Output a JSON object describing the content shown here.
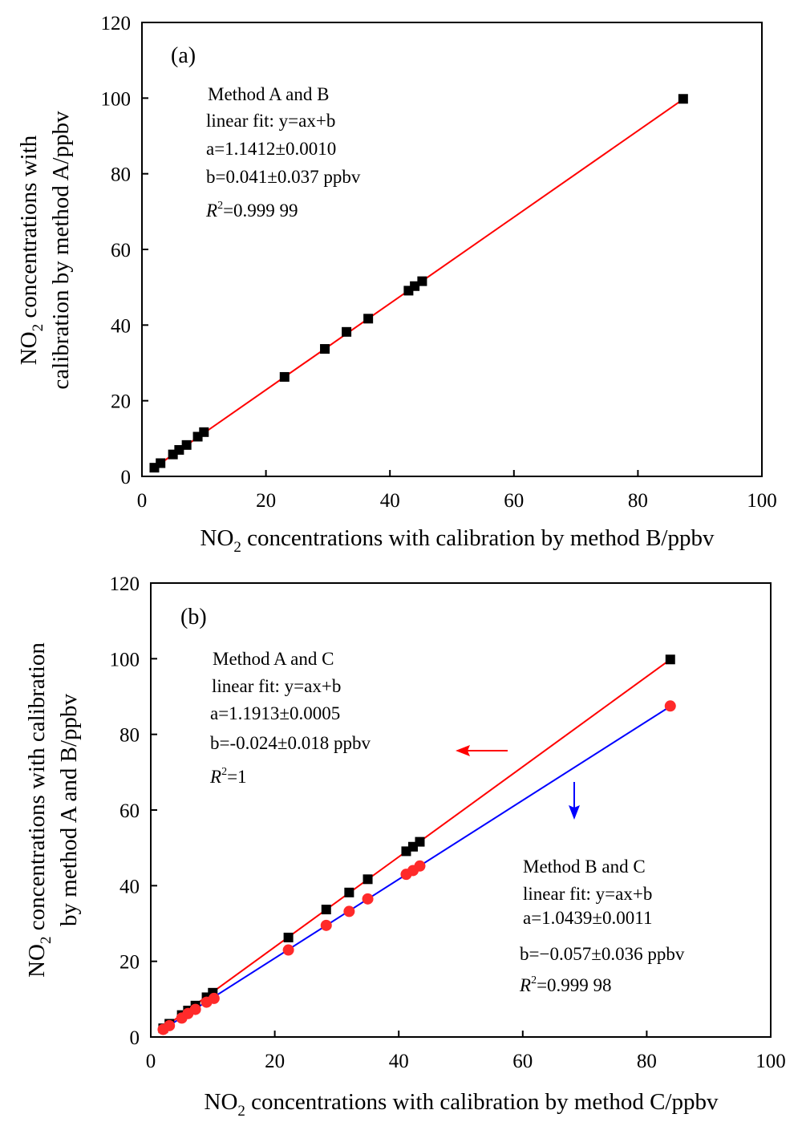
{
  "chart_data": [
    {
      "type": "scatter",
      "panel_label": "(a)",
      "xlabel": {
        "prefix": "NO",
        "sub": "2",
        "rest": " concentrations with calibration by method B/ppbv"
      },
      "ylabel": {
        "line1_prefix": "NO",
        "line1_sub": "2",
        "line1_rest": " concentrations with",
        "line2": "calibration by method A/ppbv"
      },
      "xlim": [
        0,
        100
      ],
      "ylim": [
        0,
        120
      ],
      "xticks": [
        "0",
        "20",
        "40",
        "60",
        "80",
        "100"
      ],
      "yticks": [
        "0",
        "20",
        "40",
        "60",
        "80",
        "100",
        "120"
      ],
      "grid": false,
      "annotation": {
        "title": "Method A and B",
        "fit": "linear fit: y=ax+b",
        "a": "a=1.1412±0.0010",
        "b": "b=0.041±0.037 ppbv",
        "r2_symbol": "R",
        "r2_value": "=0.999 99"
      },
      "series": [
        {
          "marker": "square",
          "color": "#000000",
          "points": [
            [
              2.0,
              2.3
            ],
            [
              3.0,
              3.5
            ],
            [
              5.0,
              5.8
            ],
            [
              6.0,
              7.0
            ],
            [
              7.2,
              8.3
            ],
            [
              9.0,
              10.5
            ],
            [
              10.0,
              11.7
            ],
            [
              23.0,
              26.3
            ],
            [
              29.5,
              33.7
            ],
            [
              33.0,
              38.2
            ],
            [
              36.5,
              41.7
            ],
            [
              43.0,
              49.1
            ],
            [
              44.0,
              50.3
            ],
            [
              45.2,
              51.6
            ],
            [
              87.3,
              99.8
            ]
          ]
        }
      ],
      "fit_lines": [
        {
          "color": "#ff0000",
          "from": [
            1.5,
            1.75
          ],
          "to": [
            87.3,
            99.7
          ]
        }
      ]
    },
    {
      "type": "scatter",
      "panel_label": "(b)",
      "xlabel": {
        "prefix": "NO",
        "sub": "2",
        "rest": " concentrations with calibration by method C/ppbv"
      },
      "ylabel": {
        "line1_prefix": "NO",
        "line1_sub": "2",
        "line1_rest": " concentrations with calibration",
        "line2": "by method A and B/ppbv"
      },
      "xlim": [
        0,
        100
      ],
      "ylim": [
        0,
        120
      ],
      "xticks": [
        "0",
        "20",
        "40",
        "60",
        "80",
        "100"
      ],
      "yticks": [
        "0",
        "20",
        "40",
        "60",
        "80",
        "100",
        "120"
      ],
      "grid": false,
      "annotation_ac": {
        "title": "Method A and C",
        "fit": "linear fit: y=ax+b",
        "a": "a=1.1913±0.0005",
        "b": "b=-0.024±0.018 ppbv",
        "r2_symbol": "R",
        "r2_value": "=1"
      },
      "annotation_bc": {
        "title": "Method B and C",
        "fit": "linear fit: y=ax+b",
        "a": "a=1.0439±0.0011",
        "b": "b=−0.057±0.036 ppbv",
        "r2_symbol": "R",
        "r2_value": "=0.999 98"
      },
      "arrows": [
        {
          "color": "#ff0000",
          "direction": "left"
        },
        {
          "color": "#0000ff",
          "direction": "down"
        }
      ],
      "series": [
        {
          "marker": "square",
          "color": "#000000",
          "points": [
            [
              2.0,
              2.3
            ],
            [
              3.0,
              3.5
            ],
            [
              5.0,
              5.8
            ],
            [
              6.0,
              7.0
            ],
            [
              7.2,
              8.3
            ],
            [
              9.0,
              10.5
            ],
            [
              10.0,
              11.7
            ],
            [
              22.2,
              26.3
            ],
            [
              28.3,
              33.7
            ],
            [
              32.0,
              38.2
            ],
            [
              35.0,
              41.7
            ],
            [
              41.2,
              49.1
            ],
            [
              42.3,
              50.3
            ],
            [
              43.4,
              51.6
            ],
            [
              83.8,
              99.8
            ]
          ]
        },
        {
          "marker": "circle",
          "color": "#ff2a2a",
          "points": [
            [
              2.0,
              2.0
            ],
            [
              3.0,
              3.0
            ],
            [
              5.0,
              5.0
            ],
            [
              6.0,
              6.2
            ],
            [
              7.2,
              7.3
            ],
            [
              9.0,
              9.2
            ],
            [
              10.2,
              10.2
            ],
            [
              22.2,
              23.0
            ],
            [
              28.3,
              29.5
            ],
            [
              32.0,
              33.2
            ],
            [
              35.0,
              36.5
            ],
            [
              41.2,
              43.0
            ],
            [
              42.3,
              44.0
            ],
            [
              43.4,
              45.2
            ],
            [
              83.8,
              87.5
            ]
          ]
        }
      ],
      "fit_lines": [
        {
          "color": "#ff0000",
          "from": [
            1.5,
            1.76
          ],
          "to": [
            83.8,
            99.8
          ]
        },
        {
          "color": "#0000ff",
          "from": [
            1.5,
            1.51
          ],
          "to": [
            83.8,
            87.4
          ]
        }
      ]
    }
  ]
}
